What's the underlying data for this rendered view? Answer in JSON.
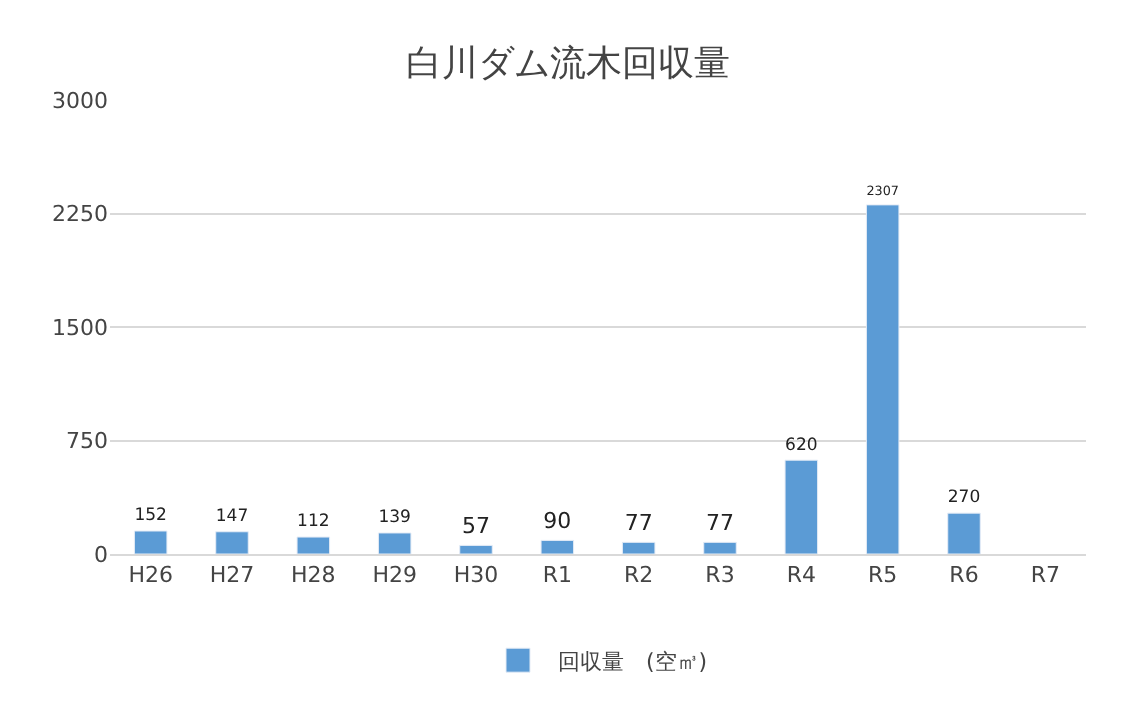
{
  "chart_data": {
    "type": "bar",
    "title": "白川ダム流木回収量",
    "categories": [
      "H26",
      "H27",
      "H28",
      "H29",
      "H30",
      "R1",
      "R2",
      "R3",
      "R4",
      "R5",
      "R6",
      "R7"
    ],
    "series": [
      {
        "name": "回収量　(空㎥)",
        "color": "#5b9bd5",
        "values": [
          152,
          147,
          112,
          139,
          57,
          90,
          77,
          77,
          620,
          2307,
          270,
          null
        ]
      }
    ],
    "ylim": [
      0,
      3000
    ],
    "yticks": [
      0,
      750,
      1500,
      2250,
      3000
    ],
    "grid": "y",
    "legend": "bottom",
    "data_labels": true
  }
}
